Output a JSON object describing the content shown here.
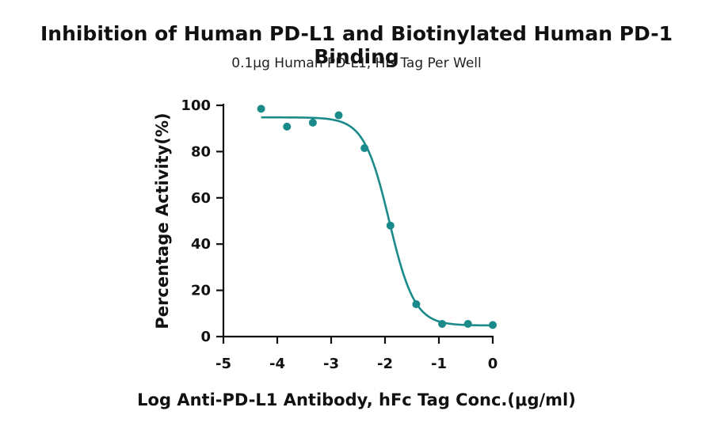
{
  "chart_data": {
    "type": "scatter",
    "title": "Inhibition of Human PD-L1 and Biotinylated Human PD-1 Binding",
    "subtitle": "0.1μg Human PD-L1, His Tag Per Well",
    "xlabel": "Log Anti-PD-L1 Antibody, hFc Tag Conc.(μg/ml)",
    "ylabel": "Percentage Activity(%)",
    "xlim": [
      -5,
      0
    ],
    "ylim": [
      0,
      100
    ],
    "xticks": [
      -5,
      -4,
      -3,
      -2,
      -1,
      0
    ],
    "xtick_labels": [
      "-5",
      "-4",
      "-3",
      "-2",
      "-1",
      "0"
    ],
    "yticks": [
      0,
      20,
      40,
      60,
      80,
      100
    ],
    "ytick_labels": [
      "0",
      "20",
      "40",
      "60",
      "80",
      "100"
    ],
    "grid": false,
    "color": "#1a8a8a",
    "series": [
      {
        "points": [
          {
            "x": -4.3,
            "y": 98.5
          },
          {
            "x": -3.82,
            "y": 90.8
          },
          {
            "x": -3.34,
            "y": 92.5
          },
          {
            "x": -2.86,
            "y": 95.7
          },
          {
            "x": -2.38,
            "y": 81.5
          },
          {
            "x": -1.9,
            "y": 48.0
          },
          {
            "x": -1.42,
            "y": 14.0
          },
          {
            "x": -0.94,
            "y": 5.5
          },
          {
            "x": -0.46,
            "y": 5.5
          },
          {
            "x": 0.0,
            "y": 5.0
          }
        ],
        "fit": {
          "model": "4PL",
          "bottom": 4.8,
          "top": 94.8,
          "log_ic50": -1.92,
          "hill_slope": -1.85,
          "x_range": [
            -4.3,
            0.0
          ]
        }
      }
    ]
  }
}
